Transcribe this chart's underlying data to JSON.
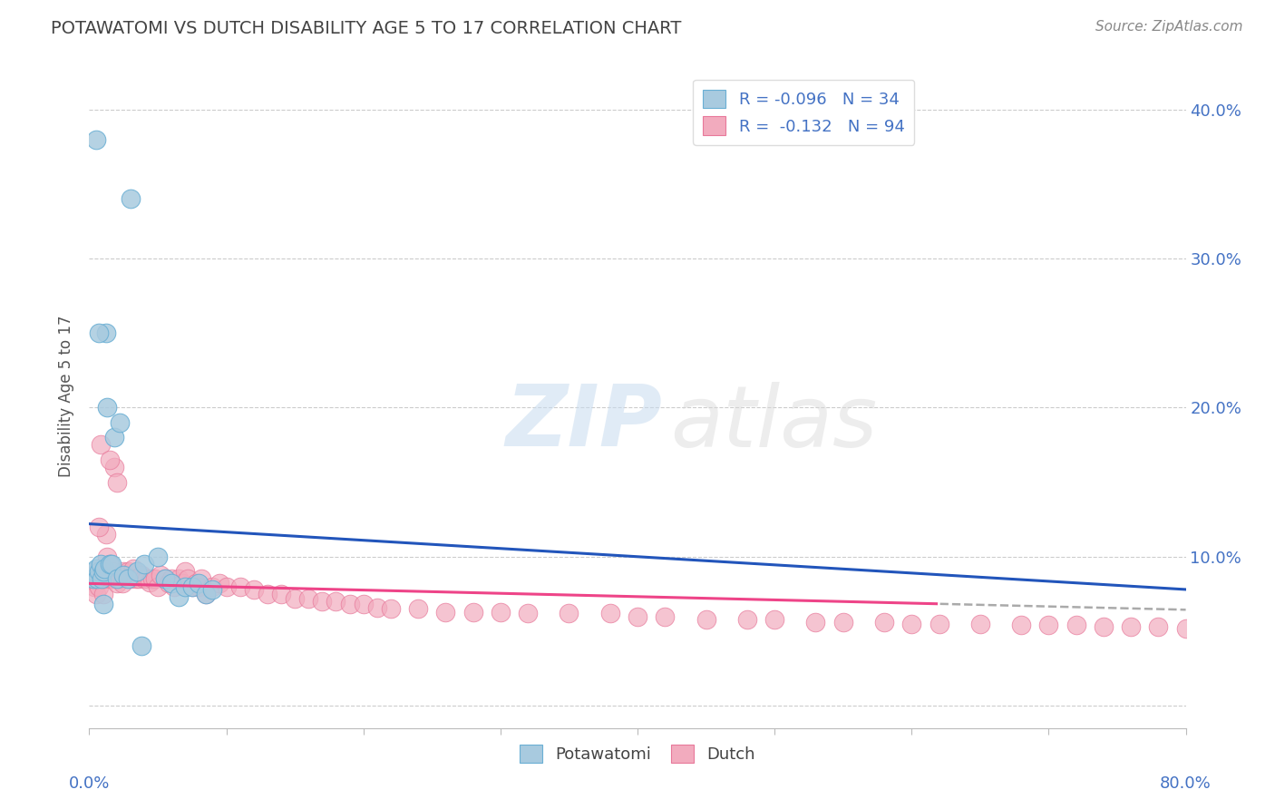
{
  "title": "POTAWATOMI VS DUTCH DISABILITY AGE 5 TO 17 CORRELATION CHART",
  "source": "Source: ZipAtlas.com",
  "ylabel": "Disability Age 5 to 17",
  "yticks": [
    0.0,
    0.1,
    0.2,
    0.3,
    0.4
  ],
  "xmin": 0.0,
  "xmax": 0.8,
  "ymin": -0.015,
  "ymax": 0.43,
  "potawatomi_R": -0.096,
  "potawatomi_N": 34,
  "dutch_R": -0.132,
  "dutch_N": 94,
  "potawatomi_color": "#A8CADF",
  "dutch_color": "#F2ABBE",
  "potawatomi_edge_color": "#6AAFD4",
  "dutch_edge_color": "#E8789A",
  "potawatomi_line_color": "#2255BB",
  "dutch_line_color": "#EE4488",
  "dashed_line_color": "#AAAAAA",
  "background_color": "#FFFFFF",
  "grid_color": "#CCCCCC",
  "title_color": "#444444",
  "source_color": "#888888",
  "axis_label_color": "#4472C4",
  "legend_r_color": "#4472C4",
  "potawatomi_line_intercept": 0.122,
  "potawatomi_line_slope": -0.055,
  "dutch_line_intercept": 0.082,
  "dutch_line_slope": -0.022,
  "dutch_line_solid_end": 0.62,
  "potawatomi_x": [
    0.003,
    0.004,
    0.005,
    0.006,
    0.007,
    0.008,
    0.009,
    0.01,
    0.011,
    0.012,
    0.013,
    0.015,
    0.016,
    0.018,
    0.02,
    0.022,
    0.025,
    0.028,
    0.03,
    0.035,
    0.038,
    0.04,
    0.05,
    0.055,
    0.06,
    0.065,
    0.07,
    0.075,
    0.08,
    0.085,
    0.09,
    0.01,
    0.007,
    0.005
  ],
  "potawatomi_y": [
    0.085,
    0.09,
    0.092,
    0.085,
    0.09,
    0.095,
    0.085,
    0.09,
    0.092,
    0.25,
    0.2,
    0.095,
    0.095,
    0.18,
    0.085,
    0.19,
    0.088,
    0.085,
    0.34,
    0.09,
    0.04,
    0.095,
    0.1,
    0.085,
    0.082,
    0.073,
    0.08,
    0.08,
    0.082,
    0.075,
    0.078,
    0.068,
    0.25,
    0.38
  ],
  "dutch_x": [
    0.003,
    0.004,
    0.005,
    0.006,
    0.007,
    0.008,
    0.009,
    0.01,
    0.011,
    0.012,
    0.013,
    0.014,
    0.015,
    0.016,
    0.017,
    0.018,
    0.019,
    0.02,
    0.022,
    0.024,
    0.025,
    0.027,
    0.028,
    0.03,
    0.032,
    0.034,
    0.036,
    0.038,
    0.04,
    0.042,
    0.044,
    0.046,
    0.048,
    0.05,
    0.052,
    0.055,
    0.058,
    0.06,
    0.062,
    0.065,
    0.068,
    0.07,
    0.072,
    0.075,
    0.078,
    0.08,
    0.082,
    0.085,
    0.09,
    0.095,
    0.1,
    0.11,
    0.12,
    0.13,
    0.14,
    0.15,
    0.16,
    0.17,
    0.18,
    0.19,
    0.2,
    0.21,
    0.22,
    0.24,
    0.26,
    0.28,
    0.3,
    0.32,
    0.35,
    0.38,
    0.4,
    0.42,
    0.45,
    0.48,
    0.5,
    0.53,
    0.55,
    0.58,
    0.6,
    0.62,
    0.65,
    0.68,
    0.7,
    0.72,
    0.74,
    0.76,
    0.78,
    0.8,
    0.007,
    0.008,
    0.015,
    0.02
  ],
  "dutch_y": [
    0.085,
    0.08,
    0.075,
    0.09,
    0.08,
    0.085,
    0.09,
    0.075,
    0.085,
    0.115,
    0.1,
    0.09,
    0.095,
    0.085,
    0.09,
    0.16,
    0.085,
    0.082,
    0.085,
    0.082,
    0.09,
    0.088,
    0.09,
    0.085,
    0.092,
    0.085,
    0.085,
    0.088,
    0.085,
    0.085,
    0.083,
    0.085,
    0.085,
    0.08,
    0.088,
    0.085,
    0.082,
    0.085,
    0.08,
    0.085,
    0.082,
    0.09,
    0.085,
    0.08,
    0.082,
    0.08,
    0.085,
    0.075,
    0.08,
    0.082,
    0.08,
    0.08,
    0.078,
    0.075,
    0.075,
    0.072,
    0.072,
    0.07,
    0.07,
    0.068,
    0.068,
    0.066,
    0.065,
    0.065,
    0.063,
    0.063,
    0.063,
    0.062,
    0.062,
    0.062,
    0.06,
    0.06,
    0.058,
    0.058,
    0.058,
    0.056,
    0.056,
    0.056,
    0.055,
    0.055,
    0.055,
    0.054,
    0.054,
    0.054,
    0.053,
    0.053,
    0.053,
    0.052,
    0.12,
    0.175,
    0.165,
    0.15
  ]
}
